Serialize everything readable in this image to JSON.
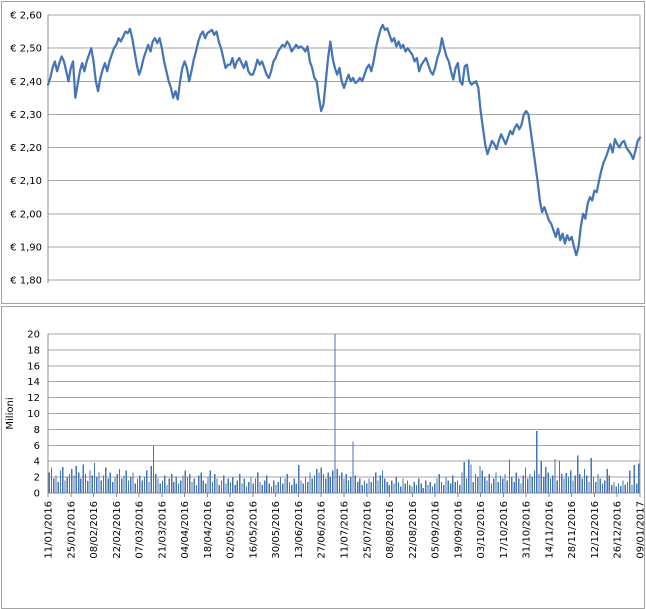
{
  "page": {
    "background": "#ffffff",
    "chart_border_color": "#a3a3a3"
  },
  "chart_data": [
    {
      "type": "line",
      "title": "",
      "ylabel": "",
      "y_tick_labels": [
        "€ 2,60",
        "€ 2,50",
        "€ 2,40",
        "€ 2,30",
        "€ 2,20",
        "€ 2,10",
        "€ 2,00",
        "€ 1,90",
        "€ 1,80"
      ],
      "ylim": [
        1.8,
        2.6
      ],
      "y_step": 0.1,
      "grid": true,
      "legend": "none",
      "x_labels_shown": false,
      "line_color": "#4575B5",
      "grid_color": "#a6a6a6",
      "axis_color": "#8c8c8c",
      "x_start_date": "11/01/2016",
      "x_end_date": "09/01/2017",
      "values": [
        2.39,
        2.41,
        2.44,
        2.46,
        2.43,
        2.455,
        2.475,
        2.46,
        2.43,
        2.4,
        2.44,
        2.46,
        2.35,
        2.39,
        2.43,
        2.455,
        2.43,
        2.46,
        2.48,
        2.5,
        2.46,
        2.4,
        2.37,
        2.41,
        2.435,
        2.455,
        2.43,
        2.46,
        2.48,
        2.5,
        2.51,
        2.53,
        2.52,
        2.535,
        2.55,
        2.545,
        2.558,
        2.53,
        2.49,
        2.45,
        2.42,
        2.44,
        2.47,
        2.49,
        2.51,
        2.49,
        2.52,
        2.53,
        2.515,
        2.53,
        2.5,
        2.46,
        2.43,
        2.4,
        2.38,
        2.35,
        2.37,
        2.345,
        2.4,
        2.44,
        2.46,
        2.44,
        2.4,
        2.43,
        2.465,
        2.49,
        2.52,
        2.54,
        2.55,
        2.53,
        2.545,
        2.55,
        2.555,
        2.54,
        2.55,
        2.52,
        2.5,
        2.47,
        2.44,
        2.45,
        2.45,
        2.47,
        2.44,
        2.46,
        2.47,
        2.455,
        2.44,
        2.46,
        2.43,
        2.42,
        2.42,
        2.44,
        2.465,
        2.45,
        2.46,
        2.44,
        2.42,
        2.41,
        2.43,
        2.46,
        2.47,
        2.49,
        2.5,
        2.51,
        2.505,
        2.52,
        2.51,
        2.49,
        2.5,
        2.51,
        2.5,
        2.505,
        2.5,
        2.49,
        2.505,
        2.46,
        2.44,
        2.41,
        2.4,
        2.35,
        2.31,
        2.33,
        2.4,
        2.47,
        2.52,
        2.47,
        2.44,
        2.42,
        2.44,
        2.4,
        2.38,
        2.4,
        2.42,
        2.4,
        2.41,
        2.395,
        2.4,
        2.41,
        2.4,
        2.42,
        2.44,
        2.45,
        2.43,
        2.46,
        2.5,
        2.53,
        2.555,
        2.57,
        2.555,
        2.56,
        2.54,
        2.52,
        2.53,
        2.505,
        2.52,
        2.5,
        2.51,
        2.49,
        2.5,
        2.49,
        2.48,
        2.46,
        2.47,
        2.43,
        2.45,
        2.46,
        2.47,
        2.45,
        2.43,
        2.42,
        2.44,
        2.47,
        2.49,
        2.53,
        2.5,
        2.475,
        2.46,
        2.43,
        2.405,
        2.44,
        2.455,
        2.4,
        2.39,
        2.445,
        2.45,
        2.4,
        2.39,
        2.395,
        2.4,
        2.38,
        2.31,
        2.26,
        2.21,
        2.18,
        2.2,
        2.22,
        2.21,
        2.195,
        2.22,
        2.24,
        2.225,
        2.21,
        2.23,
        2.25,
        2.24,
        2.26,
        2.27,
        2.255,
        2.27,
        2.3,
        2.31,
        2.3,
        2.25,
        2.2,
        2.15,
        2.1,
        2.04,
        2.005,
        2.02,
        2.0,
        1.98,
        1.97,
        1.95,
        1.93,
        1.955,
        1.92,
        1.94,
        1.91,
        1.935,
        1.92,
        1.93,
        1.9,
        1.875,
        1.9,
        1.96,
        2.0,
        1.985,
        2.03,
        2.05,
        2.04,
        2.07,
        2.065,
        2.1,
        2.13,
        2.155,
        2.17,
        2.19,
        2.21,
        2.185,
        2.225,
        2.21,
        2.2,
        2.215,
        2.22,
        2.2,
        2.19,
        2.18,
        2.165,
        2.19,
        2.22,
        2.23
      ]
    },
    {
      "type": "bar",
      "title": "",
      "ylabel": "Milioni",
      "y_tick_labels": [
        "20",
        "18",
        "16",
        "14",
        "12",
        "10",
        "8",
        "6",
        "4",
        "2",
        "0"
      ],
      "ylim": [
        0,
        20
      ],
      "y_step": 2,
      "grid": true,
      "legend": "none",
      "bar_color": "#4575B5",
      "grid_color": "#a6a6a6",
      "axis_color": "#8c8c8c",
      "x_labels": [
        "11/01/2016",
        "25/01/2016",
        "08/02/2016",
        "22/02/2016",
        "07/03/2016",
        "21/03/2016",
        "04/04/2016",
        "18/04/2016",
        "02/05/2016",
        "16/05/2016",
        "30/05/2016",
        "13/06/2016",
        "27/06/2016",
        "11/07/2016",
        "25/07/2016",
        "08/08/2016",
        "22/08/2016",
        "05/09/2016",
        "19/09/2016",
        "03/10/2016",
        "17/10/2016",
        "31/10/2016",
        "14/11/2016",
        "28/11/2016",
        "12/12/2016",
        "26/12/2016",
        "09/01/2017"
      ],
      "values": [
        2.6,
        3.2,
        1.8,
        2.2,
        1.4,
        2.8,
        3.3,
        1.6,
        2.0,
        2.4,
        3.0,
        2.2,
        3.4,
        2.6,
        1.8,
        3.6,
        2.4,
        1.5,
        2.8,
        2.2,
        3.8,
        2.0,
        2.6,
        1.6,
        2.2,
        3.2,
        1.8,
        2.6,
        1.4,
        2.0,
        2.4,
        3.0,
        1.8,
        2.2,
        2.8,
        1.6,
        2.0,
        2.6,
        1.2,
        1.8,
        2.2,
        1.6,
        2.0,
        2.8,
        1.4,
        3.4,
        6.0,
        2.4,
        1.8,
        1.2,
        1.6,
        2.2,
        1.0,
        1.8,
        2.4,
        1.4,
        2.0,
        1.2,
        1.6,
        2.2,
        2.8,
        2.0,
        2.4,
        1.4,
        1.8,
        1.0,
        2.2,
        2.6,
        1.6,
        1.2,
        2.0,
        2.8,
        1.4,
        2.4,
        1.8,
        1.0,
        1.6,
        2.2,
        1.2,
        1.8,
        1.4,
        2.0,
        1.0,
        1.6,
        2.4,
        1.2,
        1.8,
        0.8,
        1.4,
        2.0,
        1.2,
        1.8,
        2.6,
        1.4,
        1.0,
        1.6,
        2.2,
        1.2,
        0.8,
        1.6,
        1.0,
        1.4,
        2.0,
        1.2,
        1.8,
        2.4,
        1.4,
        1.0,
        1.8,
        1.2,
        3.5,
        1.6,
        1.2,
        2.0,
        1.4,
        2.6,
        1.8,
        2.2,
        3.0,
        2.6,
        3.2,
        2.4,
        1.8,
        2.6,
        2.0,
        2.8,
        20.0,
        3.0,
        2.2,
        2.6,
        1.8,
        2.4,
        1.6,
        2.0,
        6.5,
        2.2,
        1.4,
        1.8,
        1.0,
        1.6,
        1.2,
        1.8,
        1.4,
        2.0,
        2.6,
        1.6,
        2.2,
        2.8,
        1.8,
        1.4,
        1.0,
        1.6,
        1.2,
        2.0,
        1.4,
        0.8,
        1.8,
        1.2,
        1.6,
        1.0,
        0.8,
        1.4,
        1.0,
        1.8,
        1.2,
        0.6,
        1.6,
        1.0,
        1.4,
        0.8,
        1.2,
        1.8,
        2.4,
        1.4,
        1.0,
        2.0,
        1.6,
        1.2,
        2.2,
        1.4,
        1.6,
        1.0,
        2.6,
        3.9,
        1.8,
        4.2,
        3.6,
        1.4,
        2.4,
        2.0,
        3.4,
        2.8,
        2.0,
        1.6,
        2.4,
        1.2,
        1.8,
        2.6,
        1.4,
        2.2,
        1.8,
        2.4,
        1.6,
        4.2,
        2.0,
        1.4,
        2.6,
        1.8,
        1.2,
        2.2,
        3.2,
        1.8,
        2.4,
        2.0,
        2.8,
        7.8,
        2.4,
        4.0,
        2.0,
        3.3,
        2.6,
        1.8,
        2.2,
        4.3,
        1.6,
        4.1,
        2.4,
        1.8,
        2.5,
        2.0,
        2.8,
        1.6,
        2.2,
        4.7,
        2.4,
        1.8,
        3.0,
        2.2,
        1.4,
        4.4,
        2.0,
        1.4,
        2.4,
        1.8,
        1.2,
        1.6,
        3.0,
        2.2,
        1.0,
        1.4,
        0.8,
        1.2,
        0.9,
        1.6,
        1.1,
        1.4,
        2.8,
        1.0,
        3.5,
        1.2,
        3.7
      ]
    }
  ]
}
